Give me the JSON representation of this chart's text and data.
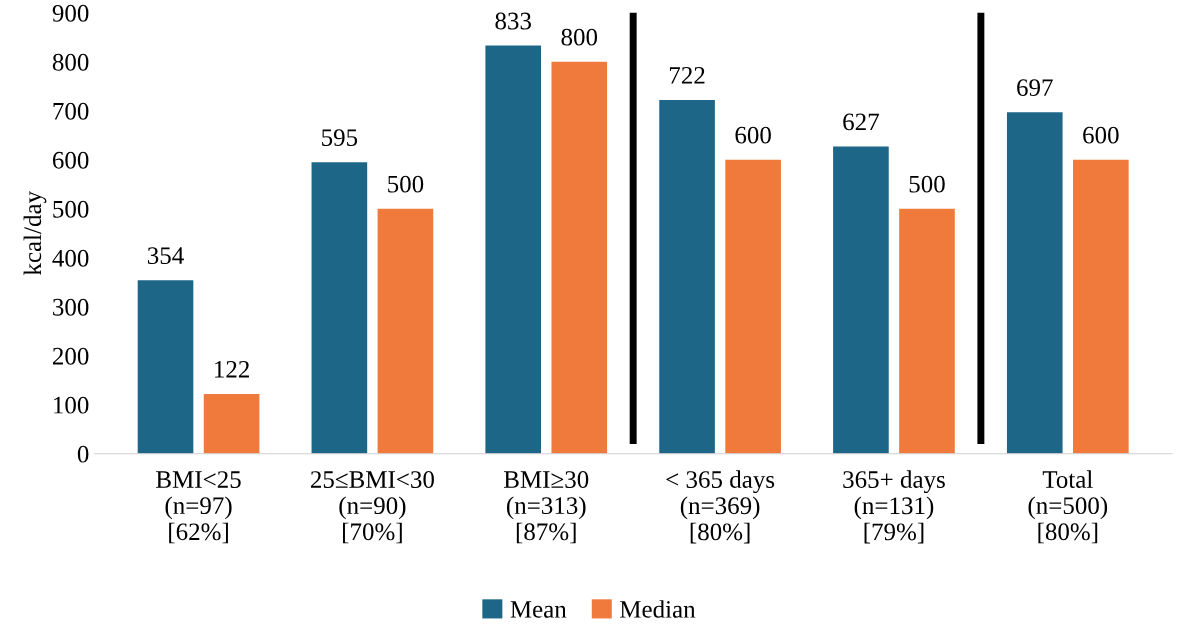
{
  "chart_data": {
    "type": "bar",
    "ylabel": "kcal/day",
    "categories": [
      "BMI<25\n(n=97)\n[62%]",
      "25≤BMI<30\n(n=90)\n[70%]",
      "BMI≥30\n(n=313)\n[87%]",
      "< 365 days\n(n=369)\n[80%]",
      "365+ days\n(n=131)\n[79%]",
      "Total\n(n=500)\n[80%]"
    ],
    "series": [
      {
        "name": "Mean",
        "color": "#1d6688",
        "values": [
          354,
          595,
          833,
          722,
          627,
          697
        ]
      },
      {
        "name": "Median",
        "color": "#f07a3c",
        "values": [
          122,
          500,
          800,
          600,
          500,
          600
        ]
      }
    ],
    "ylim": [
      0,
      900
    ],
    "yticks": [
      0,
      100,
      200,
      300,
      400,
      500,
      600,
      700,
      800,
      900
    ],
    "data_labels": true,
    "grid": false,
    "legend": "bottom"
  }
}
